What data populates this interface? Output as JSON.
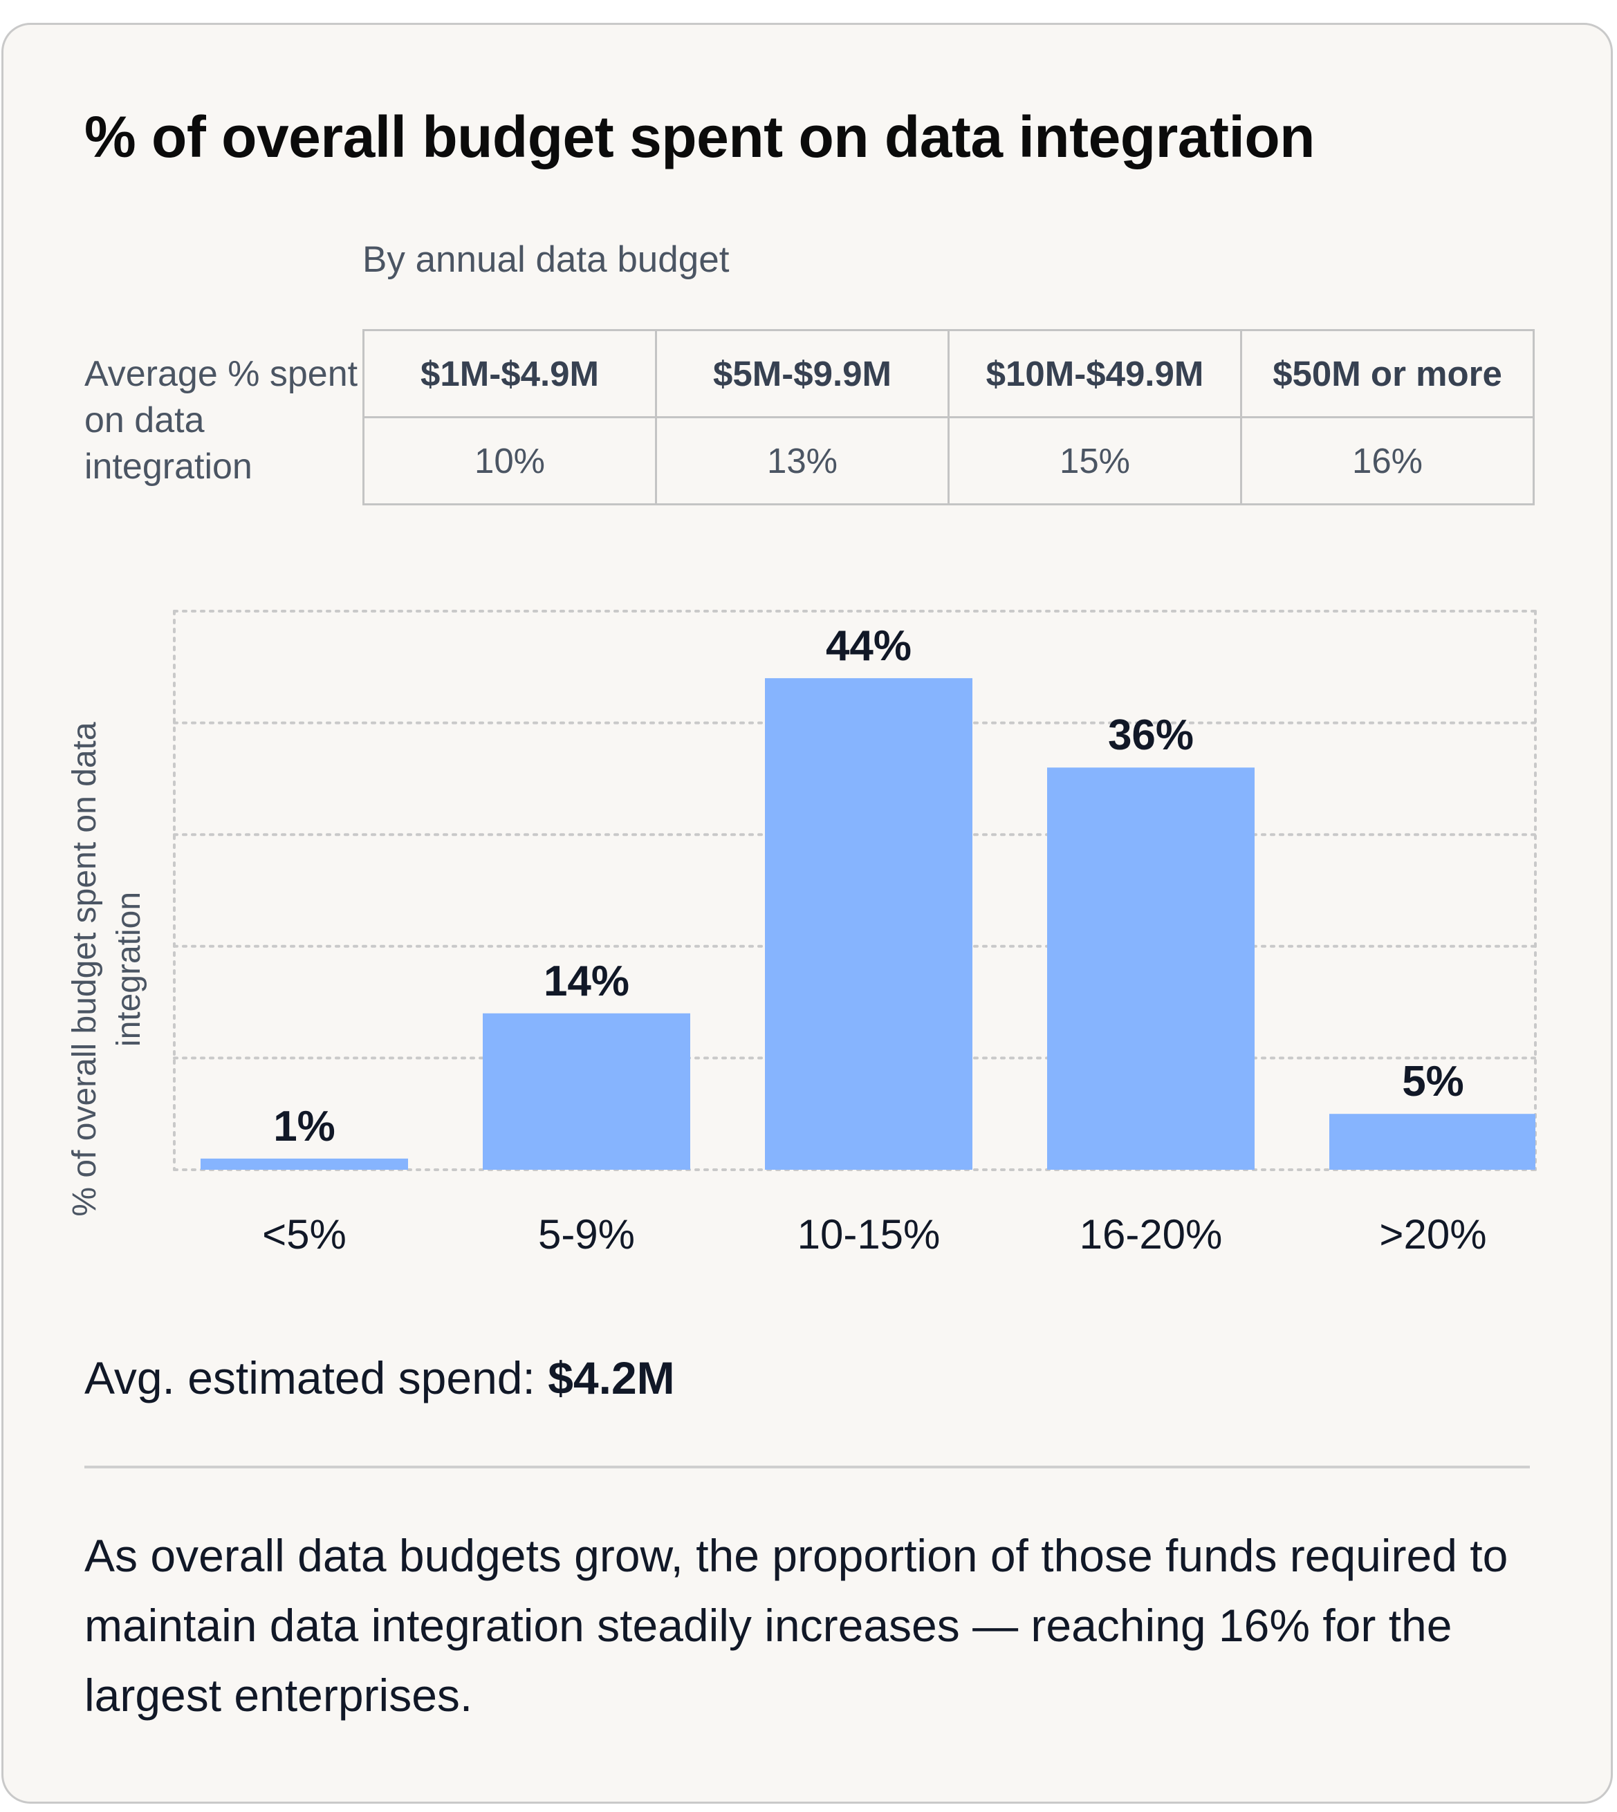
{
  "title": "% of overall budget spent on data integration",
  "table": {
    "subtitle": "By annual data budget",
    "row_label": "Average % spent on data integration",
    "columns": [
      "$1M-$4.9M",
      "$5M-$9.9M",
      "$10M-$49.9M",
      "$50M or more"
    ],
    "values": [
      "10%",
      "13%",
      "15%",
      "16%"
    ]
  },
  "chart_data": {
    "type": "bar",
    "title": "",
    "categories": [
      "<5%",
      "5-9%",
      "10-15%",
      "16-20%",
      ">20%"
    ],
    "values": [
      1,
      14,
      44,
      36,
      5
    ],
    "data_labels": [
      "1%",
      "14%",
      "44%",
      "36%",
      "5%"
    ],
    "xlabel": "",
    "ylabel": "% of overall budget spent on data integration",
    "ylim": [
      0,
      50
    ],
    "grid": true,
    "bar_color": "#86b4fe"
  },
  "spend": {
    "label": "Avg. estimated spend:",
    "value": "$4.2M"
  },
  "summary": "As overall data budgets grow, the proportion of those funds required to maintain data integration steadily increases — reaching 16% for the largest enterprises."
}
